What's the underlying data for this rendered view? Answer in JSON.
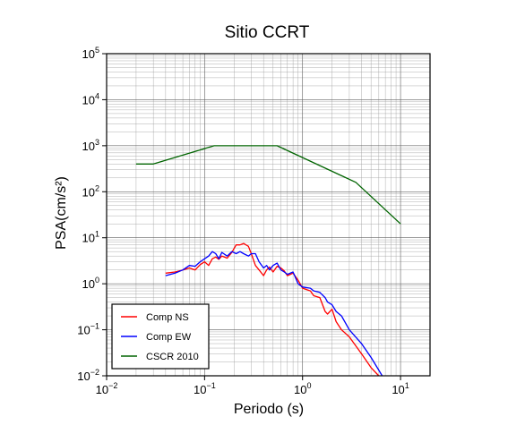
{
  "chart_data": {
    "type": "line",
    "title": "Sitio CCRT",
    "xlabel": "Periodo (s)",
    "ylabel": "PSA(cm/s²)",
    "xscale": "log",
    "yscale": "log",
    "xlim": [
      0.01,
      20
    ],
    "ylim": [
      0.01,
      100000
    ],
    "grid": true,
    "legend_position": "bottom-left",
    "xticks": [
      {
        "value": 0.01,
        "base": "10",
        "exp": "−2"
      },
      {
        "value": 0.1,
        "base": "10",
        "exp": "−1"
      },
      {
        "value": 1,
        "base": "10",
        "exp": "0"
      },
      {
        "value": 10,
        "base": "10",
        "exp": "1"
      }
    ],
    "yticks": [
      {
        "value": 0.01,
        "base": "10",
        "exp": "−2"
      },
      {
        "value": 0.1,
        "base": "10",
        "exp": "−1"
      },
      {
        "value": 1,
        "base": "10",
        "exp": "0"
      },
      {
        "value": 10,
        "base": "10",
        "exp": "1"
      },
      {
        "value": 100,
        "base": "10",
        "exp": "2"
      },
      {
        "value": 1000,
        "base": "10",
        "exp": "3"
      },
      {
        "value": 10000,
        "base": "10",
        "exp": "4"
      },
      {
        "value": 100000,
        "base": "10",
        "exp": "5"
      }
    ],
    "series": [
      {
        "name": "Comp NS",
        "color": "#ff0000",
        "x": [
          0.04,
          0.05,
          0.06,
          0.07,
          0.08,
          0.09,
          0.1,
          0.11,
          0.12,
          0.13,
          0.14,
          0.15,
          0.17,
          0.19,
          0.21,
          0.23,
          0.25,
          0.28,
          0.3,
          0.33,
          0.36,
          0.4,
          0.43,
          0.46,
          0.5,
          0.55,
          0.6,
          0.65,
          0.7,
          0.8,
          0.9,
          1.0,
          1.2,
          1.3,
          1.5,
          1.7,
          1.8,
          2.0,
          2.2,
          2.5,
          3.0,
          4.0,
          5.0,
          6.0
        ],
        "y": [
          1.7,
          1.8,
          2.0,
          2.2,
          2.0,
          2.6,
          3.0,
          2.5,
          3.5,
          3.8,
          3.4,
          4.0,
          3.6,
          4.8,
          7.0,
          7.0,
          7.5,
          6.5,
          4.5,
          2.5,
          2.0,
          1.5,
          2.0,
          2.3,
          1.8,
          2.4,
          2.2,
          1.9,
          1.5,
          1.7,
          1.2,
          0.8,
          0.7,
          0.55,
          0.5,
          0.25,
          0.22,
          0.28,
          0.15,
          0.1,
          0.07,
          0.03,
          0.015,
          0.01
        ]
      },
      {
        "name": "Comp EW",
        "color": "#0000ff",
        "x": [
          0.04,
          0.05,
          0.06,
          0.07,
          0.08,
          0.09,
          0.1,
          0.11,
          0.12,
          0.13,
          0.14,
          0.15,
          0.17,
          0.19,
          0.21,
          0.23,
          0.25,
          0.28,
          0.3,
          0.33,
          0.36,
          0.4,
          0.43,
          0.46,
          0.5,
          0.55,
          0.6,
          0.65,
          0.7,
          0.8,
          0.9,
          1.0,
          1.2,
          1.3,
          1.5,
          1.7,
          1.8,
          2.0,
          2.2,
          2.5,
          3.0,
          4.0,
          5.0,
          6.5
        ],
        "y": [
          1.5,
          1.7,
          2.0,
          2.5,
          2.4,
          3.0,
          3.5,
          4.0,
          5.0,
          4.5,
          3.5,
          4.8,
          4.0,
          5.0,
          4.5,
          5.0,
          4.5,
          4.0,
          4.5,
          4.5,
          3.0,
          2.2,
          2.5,
          2.0,
          2.5,
          2.8,
          2.0,
          1.8,
          1.6,
          1.8,
          1.0,
          0.85,
          0.8,
          0.7,
          0.65,
          0.5,
          0.4,
          0.35,
          0.25,
          0.2,
          0.1,
          0.05,
          0.025,
          0.01
        ]
      },
      {
        "name": "CSCR 2010",
        "color": "#006400",
        "x": [
          0.02,
          0.03,
          0.125,
          0.55,
          3.5,
          10
        ],
        "y": [
          400,
          400,
          1000,
          1000,
          160,
          20
        ]
      }
    ]
  }
}
